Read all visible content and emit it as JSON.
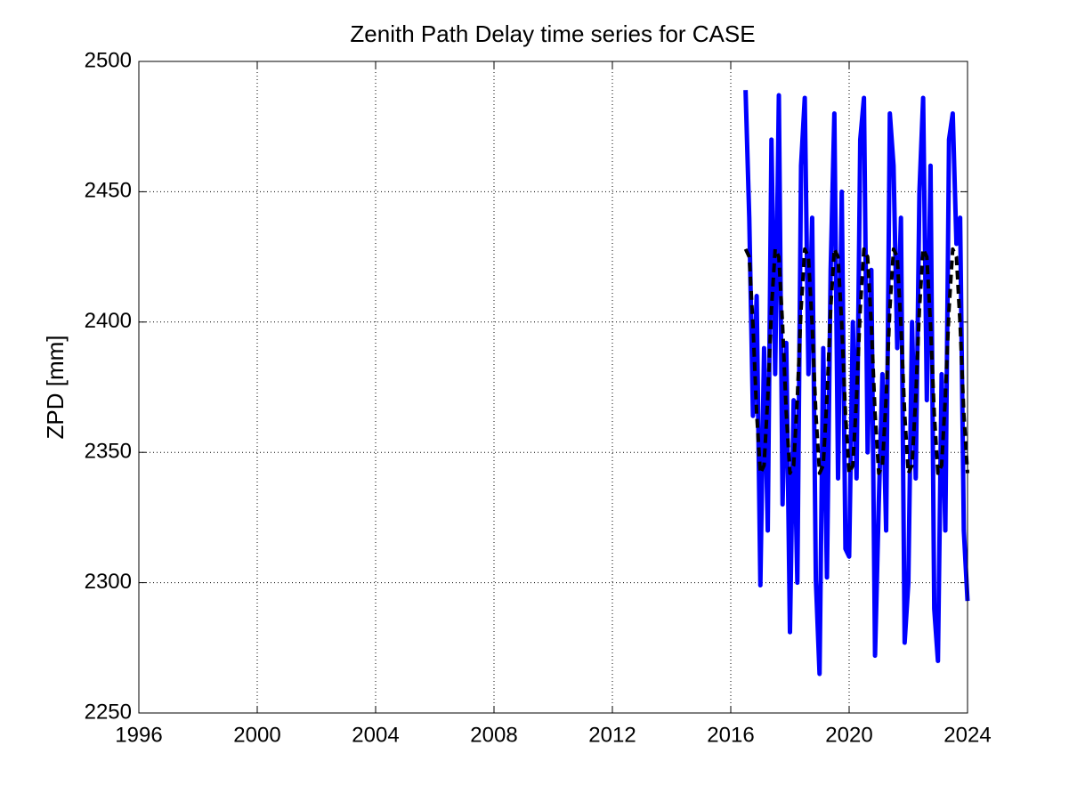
{
  "chart_data": {
    "type": "line",
    "title": "Zenith Path Delay time series for CASE",
    "y_label": "ZPD [mm]",
    "x": [
      2016.5,
      2016.625,
      2016.75,
      2016.875,
      2017,
      2017.125,
      2017.25,
      2017.375,
      2017.5,
      2017.625,
      2017.75,
      2017.875,
      2018,
      2018.125,
      2018.25,
      2018.375,
      2018.5,
      2018.625,
      2018.75,
      2018.875,
      2019,
      2019.125,
      2019.25,
      2019.375,
      2019.5,
      2019.625,
      2019.75,
      2019.875,
      2020,
      2020.125,
      2020.25,
      2020.375,
      2020.5,
      2020.625,
      2020.75,
      2020.875,
      2021,
      2021.125,
      2021.25,
      2021.375,
      2021.5,
      2021.625,
      2021.75,
      2021.875,
      2022,
      2022.125,
      2022.25,
      2022.375,
      2022.5,
      2022.625,
      2022.75,
      2022.875,
      2023,
      2023.125,
      2023.25,
      2023.375,
      2023.5,
      2023.625,
      2023.75,
      2023.875,
      2024
    ],
    "series": [
      {
        "color": "#0000ff",
        "values": [
          2489,
          2440,
          2364,
          2410,
          2299,
          2390,
          2320,
          2470,
          2380,
          2487,
          2330,
          2392,
          2281,
          2370,
          2300,
          2460,
          2486,
          2380,
          2440,
          2301,
          2265,
          2390,
          2302,
          2420,
          2480,
          2340,
          2450,
          2313,
          2310,
          2400,
          2340,
          2470,
          2486,
          2350,
          2420,
          2272,
          2330,
          2380,
          2320,
          2480,
          2460,
          2390,
          2440,
          2277,
          2300,
          2400,
          2340,
          2450,
          2486,
          2370,
          2460,
          2290,
          2270,
          2380,
          2320,
          2470,
          2480,
          2430,
          2440,
          2320,
          2293
        ]
      },
      {
        "color": "#000000",
        "dashed": true,
        "values": [
          2428,
          2425,
          2399,
          2365,
          2342,
          2345,
          2371,
          2405,
          2428,
          2425,
          2399,
          2365,
          2342,
          2345,
          2371,
          2405,
          2428,
          2425,
          2399,
          2365,
          2342,
          2345,
          2371,
          2405,
          2428,
          2425,
          2399,
          2365,
          2342,
          2345,
          2371,
          2405,
          2428,
          2425,
          2399,
          2365,
          2342,
          2345,
          2371,
          2405,
          2428,
          2425,
          2399,
          2365,
          2342,
          2345,
          2371,
          2405,
          2428,
          2425,
          2399,
          2365,
          2342,
          2345,
          2371,
          2405,
          2428,
          2425,
          2399,
          2365,
          2342
        ]
      }
    ],
    "xlim": [
      1996,
      2024
    ],
    "xticks": [
      1996,
      2000,
      2004,
      2008,
      2012,
      2016,
      2020,
      2024
    ],
    "ylim": [
      2250,
      2500
    ],
    "yticks": [
      2250,
      2300,
      2350,
      2400,
      2450,
      2500
    ],
    "grid": true
  }
}
